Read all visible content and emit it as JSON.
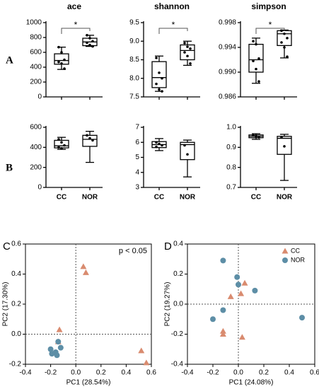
{
  "panel_labels": [
    "A",
    "B",
    "C",
    "D"
  ],
  "chart_data": [
    {
      "type": "box",
      "title": "ace",
      "significance": "*",
      "ylim": [
        0,
        1000
      ],
      "yticks": [
        0,
        200,
        400,
        600,
        800,
        1000
      ],
      "boxes": [
        {
          "min": 370,
          "q1": 440,
          "median": 490,
          "q3": 580,
          "max": 670,
          "points": [
            670,
            600,
            500,
            470,
            450,
            380
          ]
        },
        {
          "min": 680,
          "q1": 690,
          "median": 740,
          "q3": 790,
          "max": 830,
          "points": [
            830,
            790,
            750,
            730,
            700,
            680
          ]
        }
      ]
    },
    {
      "type": "box",
      "title": "shannon",
      "significance": "*",
      "ylim": [
        7.5,
        9.5
      ],
      "yticks": [
        7.5,
        {
          "value": 8,
          "label": "8.0"
        },
        8.5,
        {
          "value": 9,
          "label": "9.0"
        },
        9.5
      ],
      "boxes": [
        {
          "min": 7.65,
          "q1": 7.75,
          "median": 8.02,
          "q3": 8.45,
          "max": 8.6,
          "points": [
            8.55,
            8.15,
            8.0,
            7.85,
            7.7,
            7.65
          ]
        },
        {
          "min": 8.35,
          "q1": 8.5,
          "median": 8.75,
          "q3": 8.9,
          "max": 9.0,
          "points": [
            8.95,
            8.85,
            8.8,
            8.7,
            8.6,
            8.4
          ]
        }
      ]
    },
    {
      "type": "box",
      "title": "simpson",
      "significance": "*",
      "ylim": [
        0.986,
        0.998
      ],
      "yticks": [
        0.986,
        {
          "value": 0.99,
          "label": "0.990"
        },
        0.994,
        0.998
      ],
      "boxes": [
        {
          "min": 0.9882,
          "q1": 0.99,
          "median": 0.992,
          "q3": 0.9945,
          "max": 0.9955,
          "points": [
            0.995,
            0.9945,
            0.9922,
            0.9918,
            0.9905,
            0.9885
          ]
        },
        {
          "min": 0.9923,
          "q1": 0.9943,
          "median": 0.9962,
          "q3": 0.9967,
          "max": 0.9968,
          "points": [
            0.9967,
            0.9962,
            0.9955,
            0.9948,
            0.994,
            0.9925
          ]
        }
      ]
    },
    {
      "type": "box",
      "categories": [
        "CC",
        "NOR"
      ],
      "ylim": [
        0,
        600
      ],
      "yticks": [
        0,
        200,
        400,
        600
      ],
      "boxes": [
        {
          "min": 380,
          "q1": 395,
          "median": 415,
          "q3": 470,
          "max": 500,
          "points": [
            480,
            450,
            420,
            400,
            390
          ]
        },
        {
          "min": 250,
          "q1": 410,
          "median": 480,
          "q3": 520,
          "max": 560,
          "points": [
            520,
            490,
            470
          ]
        }
      ]
    },
    {
      "type": "box",
      "categories": [
        "CC",
        "NOR"
      ],
      "ylim": [
        3,
        7
      ],
      "yticks": [
        3,
        4,
        5,
        6,
        7
      ],
      "boxes": [
        {
          "min": 5.45,
          "q1": 5.65,
          "median": 5.85,
          "q3": 6.05,
          "max": 6.25,
          "points": [
            6.0,
            5.9,
            5.8,
            5.7
          ]
        },
        {
          "min": 3.7,
          "q1": 4.85,
          "median": 5.85,
          "q3": 6.0,
          "max": 6.15,
          "points": [
            5.8,
            5.2
          ]
        }
      ]
    },
    {
      "type": "box",
      "categories": [
        "CC",
        "NOR"
      ],
      "ylim": [
        0.7,
        1.0
      ],
      "yticks": [
        0.7,
        0.8,
        0.9,
        {
          "value": 1,
          "label": "1.0"
        }
      ],
      "boxes": [
        {
          "min": 0.94,
          "q1": 0.948,
          "median": 0.955,
          "q3": 0.962,
          "max": 0.968,
          "points": [
            0.96,
            0.955,
            0.95
          ]
        },
        {
          "min": 0.735,
          "q1": 0.865,
          "median": 0.945,
          "q3": 0.955,
          "max": 0.965,
          "points": [
            0.95,
            0.905
          ]
        }
      ]
    },
    {
      "type": "scatter",
      "xlabel": "PC1 (28.54%)",
      "ylabel": "PC2 (17.30%)",
      "annotation": "p < 0.05",
      "legend": false,
      "xlim": [
        -0.4,
        0.6
      ],
      "xticks": [
        -0.4,
        -0.2,
        {
          "value": 0,
          "label": "0.0"
        },
        0.2,
        0.4,
        0.6
      ],
      "ylim": [
        -0.2,
        0.6
      ],
      "yticks": [
        -0.2,
        {
          "value": 0,
          "label": "0.0"
        },
        0.2,
        0.4,
        0.6
      ],
      "series": [
        {
          "name": "CC",
          "color": "#d98b6f",
          "marker": "triangle",
          "x": [
            0.06,
            0.08,
            -0.13,
            0.52,
            0.56,
            -0.14
          ],
          "y": [
            0.45,
            0.41,
            0.03,
            -0.11,
            -0.19,
            -0.05
          ]
        },
        {
          "name": "NOR",
          "color": "#5d8ea6",
          "marker": "circle",
          "x": [
            -0.2,
            -0.19,
            -0.16,
            -0.14,
            -0.12,
            -0.15
          ],
          "y": [
            -0.1,
            -0.13,
            -0.12,
            -0.05,
            -0.09,
            -0.14
          ]
        }
      ]
    },
    {
      "type": "scatter",
      "xlabel": "PC1 (24.08%)",
      "ylabel": "PC2 (19.27%)",
      "legend": "upper right",
      "xlim": [
        -0.4,
        0.6
      ],
      "xticks": [
        -0.4,
        -0.2,
        {
          "value": 0,
          "label": "0.0"
        },
        0.2,
        0.4,
        0.6
      ],
      "ylim": [
        -0.4,
        0.4
      ],
      "yticks": [
        -0.4,
        -0.2,
        {
          "value": 0,
          "label": "0.0"
        },
        0.2,
        0.4
      ],
      "series": [
        {
          "name": "CC",
          "color": "#d98b6f",
          "marker": "triangle",
          "x": [
            0.05,
            0.02,
            -0.06,
            -0.12,
            -0.12,
            0.03
          ],
          "y": [
            0.14,
            0.07,
            0.05,
            -0.18,
            -0.2,
            -0.22
          ]
        },
        {
          "name": "NOR",
          "color": "#5d8ea6",
          "marker": "circle",
          "x": [
            -0.12,
            -0.01,
            0.0,
            0.13,
            -0.12,
            -0.2,
            0.5
          ],
          "y": [
            0.29,
            0.18,
            0.13,
            0.09,
            -0.04,
            -0.1,
            -0.09
          ]
        }
      ]
    }
  ]
}
